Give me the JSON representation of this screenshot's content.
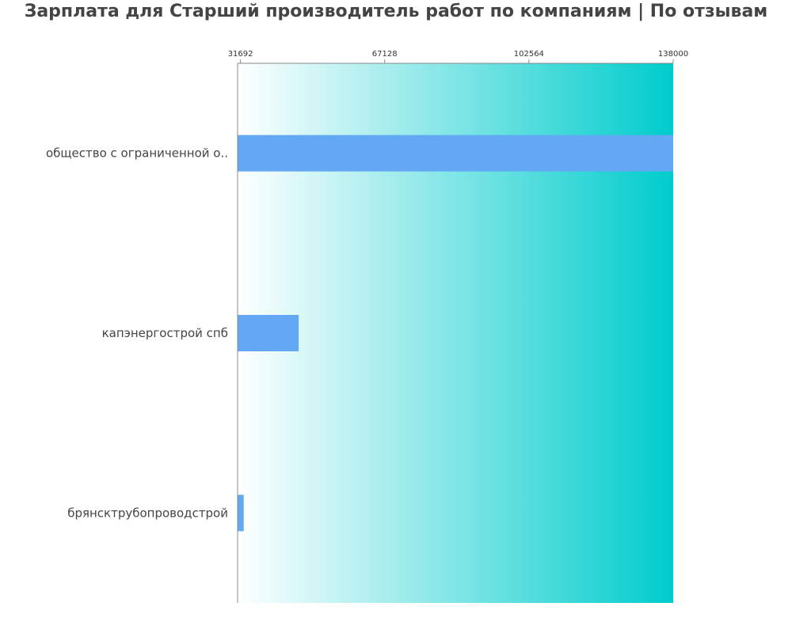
{
  "chart_data": {
    "type": "bar",
    "orientation": "horizontal",
    "title": "Зарплата для Старший производитель работ по компаниям  | По отзывам",
    "xlabel": "",
    "ylabel": "",
    "categories": [
      "общество с ограниченной о..",
      "капэнергострой спб",
      "брянсктрубопроводстрой"
    ],
    "values": [
      138000,
      46000,
      32500
    ],
    "xlim": [
      31000,
      138000
    ],
    "x_ticks": [
      31692,
      67128,
      102564,
      138000
    ],
    "x_tick_labels": [
      "31692",
      "67128",
      "102564",
      "138000"
    ],
    "x_axis_position": "top",
    "grid": false,
    "legend": "none",
    "colors": {
      "bar": "#63a8f3",
      "background_gradient_start": "#ffffff",
      "background_gradient_end": "#00cccc",
      "axis": "#888888",
      "title": "#444444"
    }
  }
}
